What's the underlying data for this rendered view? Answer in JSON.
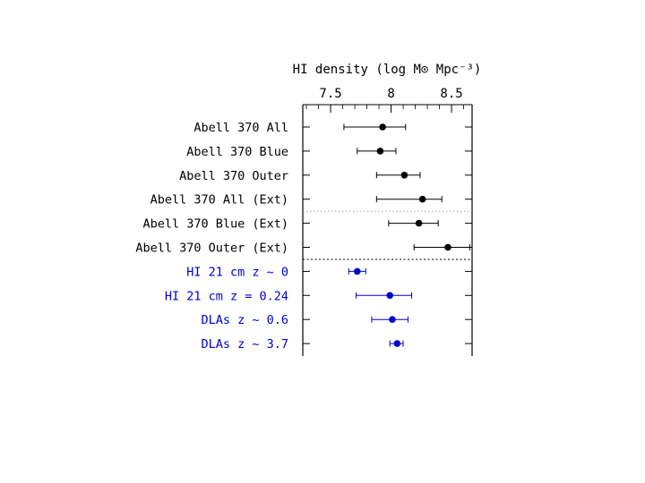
{
  "chart_data": {
    "type": "scatter",
    "orientation": "horizontal-errorbars",
    "xlabel": "HI density (log M⊙ Mpc⁻³)",
    "xlim": [
      7.27,
      8.67
    ],
    "x_ticks": [
      "7.5",
      "8",
      "8.5"
    ],
    "grid": false,
    "colors": {
      "black": "#000000",
      "blue": "#0000cc"
    },
    "rows": [
      {
        "label": "Abell 370 All",
        "value": 7.93,
        "err_low": 7.61,
        "err_high": 8.12,
        "color": "black"
      },
      {
        "label": "Abell 370 Blue",
        "value": 7.91,
        "err_low": 7.72,
        "err_high": 8.04,
        "color": "black"
      },
      {
        "label": "Abell 370 Outer",
        "value": 8.11,
        "err_low": 7.88,
        "err_high": 8.24,
        "color": "black"
      },
      {
        "label": "Abell 370 All (Ext)",
        "value": 8.26,
        "err_low": 7.88,
        "err_high": 8.42,
        "color": "black"
      },
      {
        "label": "Abell 370 Blue (Ext)",
        "value": 8.23,
        "err_low": 7.98,
        "err_high": 8.39,
        "color": "black"
      },
      {
        "label": "Abell 370 Outer (Ext)",
        "value": 8.47,
        "err_low": 8.19,
        "err_high": 8.65,
        "color": "black"
      },
      {
        "label": "HI 21 cm z ~ 0",
        "value": 7.72,
        "err_low": 7.65,
        "err_high": 7.79,
        "color": "blue"
      },
      {
        "label": "HI 21 cm z = 0.24",
        "value": 7.99,
        "err_low": 7.71,
        "err_high": 8.17,
        "color": "blue"
      },
      {
        "label": "DLAs z ~ 0.6",
        "value": 8.01,
        "err_low": 7.84,
        "err_high": 8.14,
        "color": "blue"
      },
      {
        "label": "DLAs z ~ 3.7",
        "value": 8.05,
        "err_low": 7.99,
        "err_high": 8.1,
        "color": "blue"
      }
    ],
    "separators_after_row": [
      3,
      5
    ]
  }
}
